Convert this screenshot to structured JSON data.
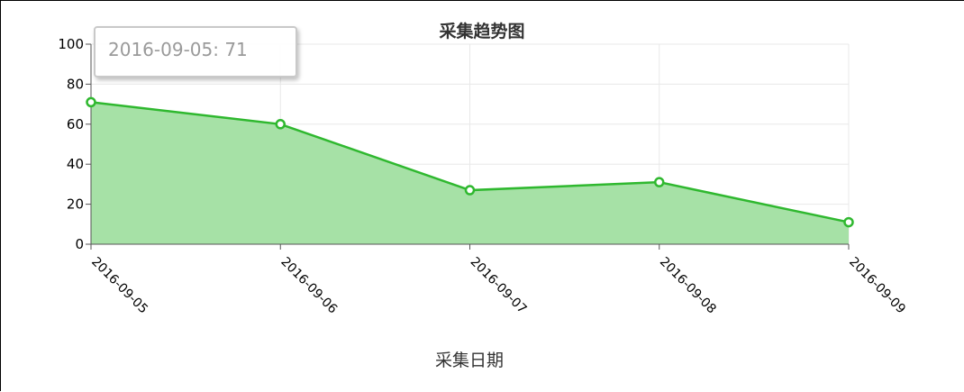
{
  "chart_data": {
    "type": "area",
    "title": "采集趋势图",
    "xlabel": "采集日期",
    "ylabel": "",
    "categories": [
      "2016-09-05",
      "2016-09-06",
      "2016-09-07",
      "2016-09-08",
      "2016-09-09"
    ],
    "series": [
      {
        "values": [
          71,
          60,
          27,
          31,
          11
        ]
      }
    ],
    "ylim": [
      0,
      100
    ],
    "yticks": [
      0,
      20,
      40,
      60,
      80,
      100
    ],
    "grid": true,
    "legend": "none",
    "colors": {
      "line": "#2fb82f",
      "fill": "#a6e1a6",
      "axis": "#555555",
      "grid": "#e8e8e8"
    }
  },
  "tooltip": {
    "text": "2016-09-05: 71"
  }
}
